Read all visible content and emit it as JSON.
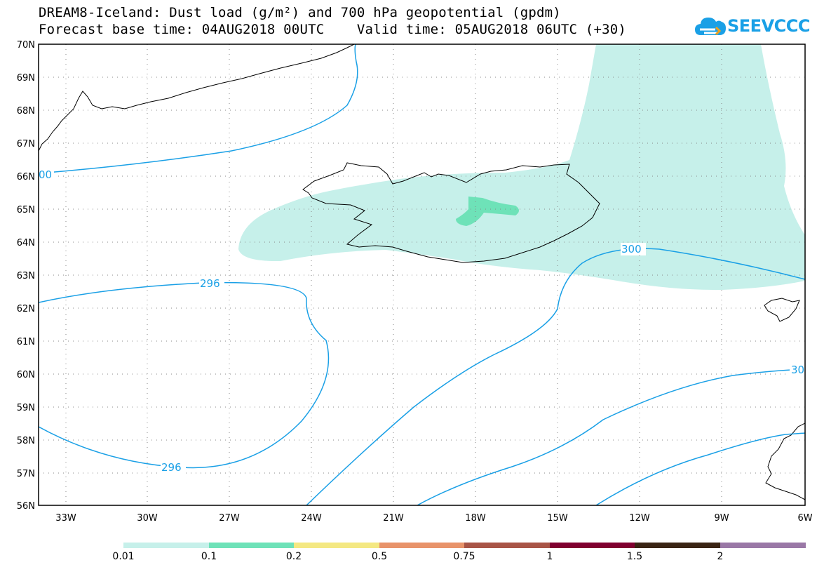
{
  "title": {
    "line1": "DREAM8-Iceland: Dust load (g/m²) and 700 hPa geopotential (gpdm)",
    "line2": "Forecast base time: 04AUG2018 00UTC    Valid time: 05AUG2018 06UTC (+30)"
  },
  "logo": {
    "text": "SEEVCCC",
    "icon": "cloud-icon",
    "color": "#1aa0e6"
  },
  "map": {
    "lat_labels": [
      "70N",
      "69N",
      "68N",
      "67N",
      "66N",
      "65N",
      "64N",
      "63N",
      "62N",
      "61N",
      "60N",
      "59N",
      "58N",
      "57N",
      "56N"
    ],
    "lon_labels": [
      "33W",
      "30W",
      "27W",
      "24W",
      "21W",
      "18W",
      "15W",
      "12W",
      "9W",
      "6W"
    ],
    "contour_labels": [
      {
        "text": "296",
        "id": "contour-label-296-top"
      },
      {
        "text": "296",
        "id": "contour-label-296-bottom"
      },
      {
        "text": "300",
        "id": "contour-label-300"
      },
      {
        "text": "00",
        "id": "contour-label-00-left"
      },
      {
        "text": "30",
        "id": "contour-label-30-right"
      }
    ],
    "colors": {
      "dust_low": "#c6f0ea",
      "dust_mid": "#6ee2b8",
      "contour": "#1aa0e6",
      "coastline": "#000000"
    }
  },
  "legend": {
    "labels": [
      "0.01",
      "0.1",
      "0.2",
      "0.5",
      "0.75",
      "1",
      "1.5",
      "2"
    ],
    "colors": [
      "#c6f0ea",
      "#6ee2b8",
      "#f4e882",
      "#e8936a",
      "#a85446",
      "#800030",
      "#3a2414",
      "#9a78a6"
    ]
  }
}
